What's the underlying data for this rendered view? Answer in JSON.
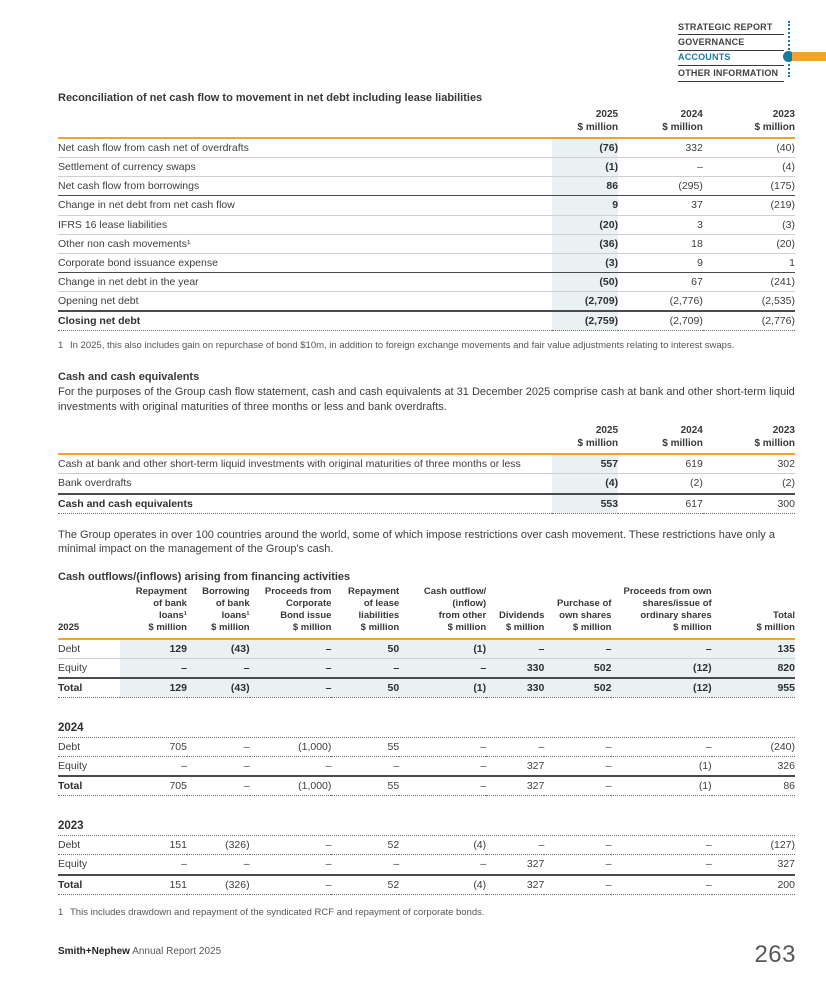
{
  "colors": {
    "accent_teal": "#177B9F",
    "accent_orange": "#F2A22F",
    "highlight": "#E9F1F3"
  },
  "nav": {
    "items": [
      {
        "label": "STRATEGIC REPORT",
        "active": false
      },
      {
        "label": "GOVERNANCE",
        "active": false
      },
      {
        "label": "ACCOUNTS",
        "active": true
      },
      {
        "label": "OTHER INFORMATION",
        "active": false
      }
    ]
  },
  "table1": {
    "title": "Reconciliation of net cash flow to movement in net debt including lease liabilities",
    "columns": [
      "2025\n$ million",
      "2024\n$ million",
      "2023\n$ million"
    ],
    "rows": [
      {
        "label": "Net cash flow from cash net of overdrafts",
        "values": [
          "(76)",
          "332",
          "(40)"
        ],
        "border": "light"
      },
      {
        "label": "Settlement of currency swaps",
        "values": [
          "(1)",
          "–",
          "(4)"
        ],
        "border": "light"
      },
      {
        "label": "Net cash flow from borrowings",
        "values": [
          "86",
          "(295)",
          "(175)"
        ],
        "border": "dark"
      },
      {
        "label": "Change in net debt from net cash flow",
        "values": [
          "9",
          "37",
          "(219)"
        ],
        "border": "light"
      },
      {
        "label": "IFRS 16 lease liabilities",
        "values": [
          "(20)",
          "3",
          "(3)"
        ],
        "border": "light"
      },
      {
        "label": "Other non cash movements¹",
        "values": [
          "(36)",
          "18",
          "(20)"
        ],
        "border": "light"
      },
      {
        "label": "Corporate bond issuance expense",
        "values": [
          "(3)",
          "9",
          "1"
        ],
        "border": "dark"
      },
      {
        "label": "Change in net debt in the year",
        "values": [
          "(50)",
          "67",
          "(241)"
        ],
        "border": "light"
      },
      {
        "label": "Opening net debt",
        "values": [
          "(2,709)",
          "(2,776)",
          "(2,535)"
        ],
        "border": "dark2"
      },
      {
        "label": "Closing net debt",
        "values": [
          "(2,759)",
          "(2,709)",
          "(2,776)"
        ],
        "border": "dotted",
        "bold": true
      }
    ],
    "footnote": {
      "marker": "1",
      "text": "In 2025, this also includes gain on repurchase of bond $10m, in addition to foreign exchange movements and fair value adjustments relating to interest swaps."
    }
  },
  "section2": {
    "heading": "Cash and cash equivalents",
    "intro": "For the purposes of the Group cash flow statement, cash and cash equivalents at 31 December 2025 comprise cash at bank and other short-term liquid investments with original maturities of three months or less and bank overdrafts.",
    "columns": [
      "2025\n$ million",
      "2024\n$ million",
      "2023\n$ million"
    ],
    "rows": [
      {
        "label": "Cash at bank and other short-term liquid investments with original maturities of three months or less",
        "values": [
          "557",
          "619",
          "302"
        ],
        "border": "light"
      },
      {
        "label": "Bank overdrafts",
        "values": [
          "(4)",
          "(2)",
          "(2)"
        ],
        "border": "dark2"
      },
      {
        "label": "Cash and cash equivalents",
        "values": [
          "553",
          "617",
          "300"
        ],
        "border": "dotted",
        "bold": true
      }
    ],
    "outro": "The Group operates in over 100 countries around the world, some of which impose restrictions over cash movement. These restrictions have only a minimal impact on the management of the Group's cash."
  },
  "section3": {
    "heading": "Cash outflows/(inflows) arising from financing activities",
    "year_label": "2025",
    "columns": [
      "Repayment\nof bank\nloans¹\n$ million",
      "Borrowing\nof bank\nloans¹\n$ million",
      "Proceeds from\nCorporate\nBond issue\n$ million",
      "Repayment\nof lease\nliabilities\n$ million",
      "Cash outflow/\n(inflow)\nfrom other\n$ million",
      "Dividends\n$ million",
      "Purchase of\nown shares\n$ million",
      "Proceeds from own\nshares/issue of\nordinary shares\n$ million",
      "Total\n$ million"
    ],
    "rows_2025": [
      {
        "label": "Debt",
        "values": [
          "129",
          "(43)",
          "–",
          "50",
          "(1)",
          "–",
          "–",
          "–",
          "135"
        ],
        "border": "light"
      },
      {
        "label": "Equity",
        "values": [
          "–",
          "–",
          "–",
          "–",
          "–",
          "330",
          "502",
          "(12)",
          "820"
        ],
        "border": "dark2"
      },
      {
        "label": "Total",
        "values": [
          "129",
          "(43)",
          "–",
          "50",
          "(1)",
          "330",
          "502",
          "(12)",
          "955"
        ],
        "border": "dotted",
        "bold": true
      }
    ],
    "blocks": [
      {
        "year": "2024",
        "rows": [
          {
            "label": "Debt",
            "values": [
              "705",
              "–",
              "(1,000)",
              "55",
              "–",
              "–",
              "–",
              "–",
              "(240)"
            ],
            "border": "dotted"
          },
          {
            "label": "Equity",
            "values": [
              "–",
              "–",
              "–",
              "–",
              "–",
              "327",
              "–",
              "(1)",
              "326"
            ],
            "border": "dark2"
          },
          {
            "label": "Total",
            "values": [
              "705",
              "–",
              "(1,000)",
              "55",
              "–",
              "327",
              "–",
              "(1)",
              "86"
            ],
            "border": "dotted",
            "bold": true
          }
        ]
      },
      {
        "year": "2023",
        "rows": [
          {
            "label": "Debt",
            "values": [
              "151",
              "(326)",
              "–",
              "52",
              "(4)",
              "–",
              "–",
              "–",
              "(127)"
            ],
            "border": "dotted"
          },
          {
            "label": "Equity",
            "values": [
              "–",
              "–",
              "–",
              "–",
              "–",
              "327",
              "–",
              "–",
              "327"
            ],
            "border": "dark2"
          },
          {
            "label": "Total",
            "values": [
              "151",
              "(326)",
              "–",
              "52",
              "(4)",
              "327",
              "–",
              "–",
              "200"
            ],
            "border": "dotted",
            "bold": true
          }
        ]
      }
    ],
    "footnote": {
      "marker": "1",
      "text": "This includes drawdown and repayment of the syndicated RCF and repayment of corporate bonds."
    }
  },
  "footer": {
    "brand": "Smith+Nephew",
    "rest": " Annual Report 2025",
    "page_number": "263"
  }
}
